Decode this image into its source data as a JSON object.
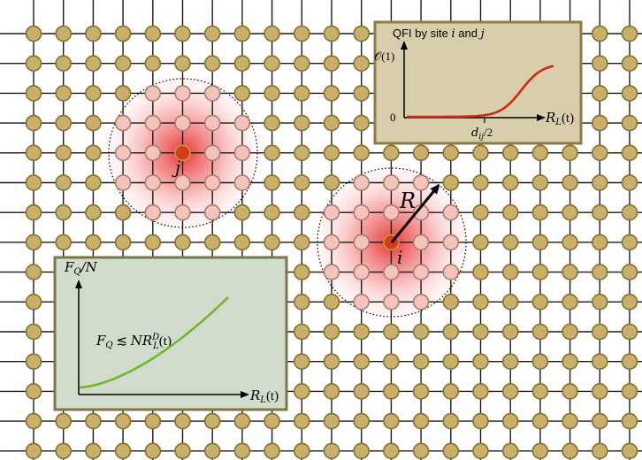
{
  "colors": {
    "lattice_line": "#1a1a1a",
    "site_fill": "#c8b06a",
    "site_stroke": "#8a6f2c",
    "site_highlight_fill": "#f2c4bb",
    "site_highlight_stroke": "#b07a6e",
    "center_fill": "#d23c1e",
    "center_stroke": "#c79a3a",
    "glow": "#e32b2b",
    "inset_top_bg": "#d9ceac",
    "inset_top_border": "#8d7a45",
    "inset_bottom_bg": "#d2dccd",
    "inset_bottom_border": "#7d7447",
    "curve_red": "#cc2a12",
    "curve_green": "#72b62e",
    "arrow": "#000000"
  },
  "sites": {
    "j_label": "j",
    "i_label": "i",
    "radius_label": "R"
  },
  "inset_top": {
    "title_prefix": "QFI by site ",
    "title_i": "i",
    "title_and": " and ",
    "title_j": "j",
    "ytick_high": "𝒪(1)",
    "ytick_zero": "0",
    "xtick": "d",
    "xtick_sub": "ij",
    "xtick_suffix": "/2",
    "xlabel_main": "R",
    "xlabel_sub": "L",
    "xlabel_paren": "(t)",
    "curve_type": "sigmoid"
  },
  "inset_bottom": {
    "ylabel_main": "F",
    "ylabel_sub": "Q",
    "ylabel_suffix": "/N",
    "formula_F": "F",
    "formula_Fsub": "Q",
    "formula_rel": " ≲ ",
    "formula_NR": "NR",
    "formula_sup": "D",
    "formula_sub": "L",
    "formula_paren": "(t)",
    "xlabel_main": "R",
    "xlabel_sub": "L",
    "xlabel_paren": "(t)",
    "curve_type": "power-law"
  }
}
